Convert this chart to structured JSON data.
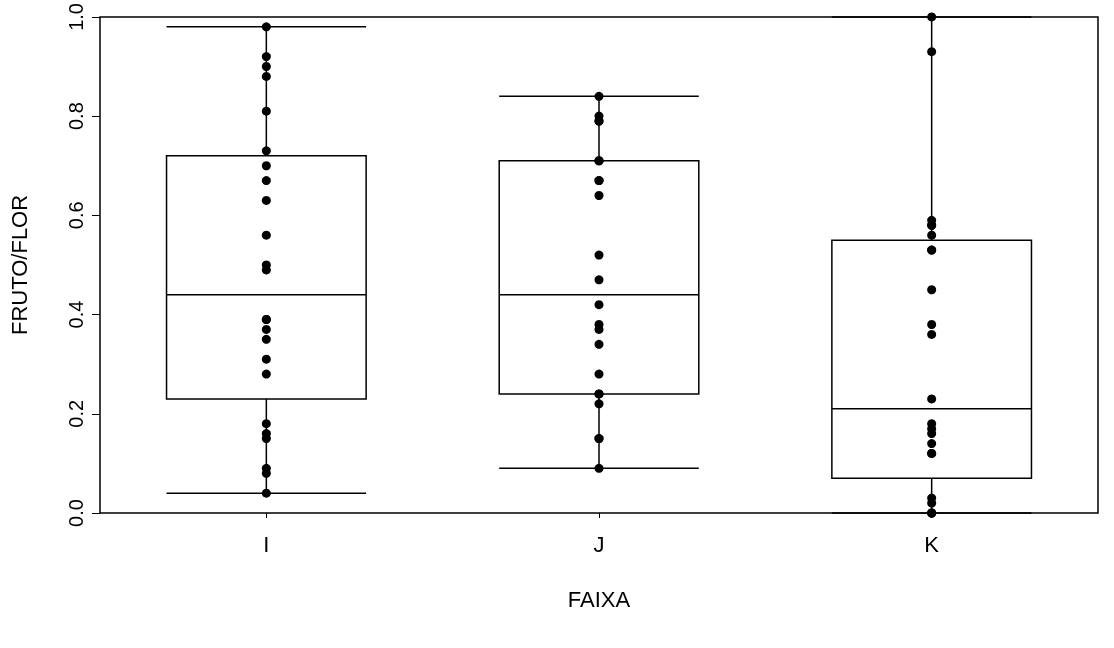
{
  "chart_data": {
    "type": "box",
    "xlabel": "FAIXA",
    "ylabel": "FRUTO/FLOR",
    "categories": [
      "I",
      "J",
      "K"
    ],
    "boxes": [
      {
        "low": 0.04,
        "q1": 0.23,
        "median": 0.44,
        "q3": 0.72,
        "high": 0.98
      },
      {
        "low": 0.09,
        "q1": 0.24,
        "median": 0.44,
        "q3": 0.71,
        "high": 0.84
      },
      {
        "low": 0.0,
        "q1": 0.07,
        "median": 0.21,
        "q3": 0.55,
        "high": 1.0
      }
    ],
    "color": "#000000",
    "series": [
      {
        "type": "scatter",
        "color": "#000000",
        "x": [
          "I",
          "I",
          "I",
          "I",
          "I",
          "I",
          "I",
          "I",
          "I",
          "I",
          "I",
          "I",
          "I",
          "I",
          "I",
          "I",
          "I",
          "I",
          "I",
          "I",
          "I",
          "I",
          "I",
          "I",
          "J",
          "J",
          "J",
          "J",
          "J",
          "J",
          "J",
          "J",
          "J",
          "J",
          "J",
          "J",
          "J",
          "J",
          "J",
          "J",
          "J",
          "J",
          "J",
          "J",
          "J",
          "J",
          "K",
          "K",
          "K",
          "K",
          "K",
          "K",
          "K",
          "K",
          "K",
          "K",
          "K",
          "K",
          "K",
          "K",
          "K",
          "K",
          "K",
          "K",
          "K",
          "K",
          "K",
          "K",
          "K"
        ],
        "values": [
          0.98,
          0.92,
          0.9,
          0.88,
          0.81,
          0.73,
          0.7,
          0.67,
          0.63,
          0.56,
          0.5,
          0.49,
          0.39,
          0.39,
          0.37,
          0.35,
          0.31,
          0.28,
          0.18,
          0.16,
          0.15,
          0.09,
          0.08,
          0.04,
          0.84,
          0.8,
          0.79,
          0.79,
          0.71,
          0.71,
          0.67,
          0.67,
          0.64,
          0.52,
          0.47,
          0.42,
          0.38,
          0.37,
          0.34,
          0.28,
          0.24,
          0.24,
          0.22,
          0.15,
          0.15,
          0.09,
          1.0,
          0.93,
          0.59,
          0.58,
          0.58,
          0.56,
          0.53,
          0.53,
          0.45,
          0.38,
          0.36,
          0.23,
          0.18,
          0.17,
          0.16,
          0.14,
          0.12,
          0.12,
          0.03,
          0.02,
          0.0,
          0.0,
          0.0
        ]
      }
    ],
    "marker": "circle",
    "ylim": [
      0,
      1
    ],
    "yticks": [
      {
        "value": 0,
        "label": "0.0"
      },
      0.2,
      0.4,
      0.6,
      0.8,
      {
        "value": 1,
        "label": "1.0"
      }
    ]
  }
}
